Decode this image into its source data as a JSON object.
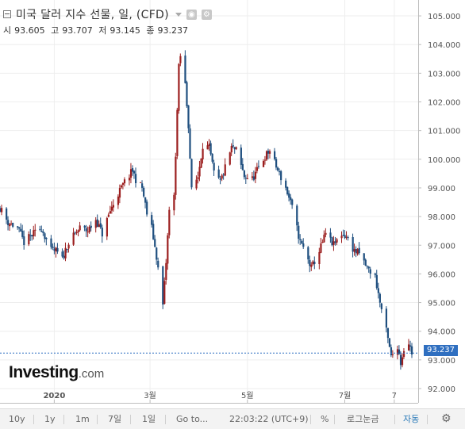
{
  "header": {
    "title": "미국 달러 지수 선물, 일, (CFD)",
    "ohlc": [
      {
        "label": "시",
        "value": "93.605"
      },
      {
        "label": "고",
        "value": "93.707"
      },
      {
        "label": "저",
        "value": "93.145"
      },
      {
        "label": "종",
        "value": "93.237"
      }
    ]
  },
  "logo": {
    "brand": "Investing",
    "domain": ".com"
  },
  "last_price_label": "93.237",
  "toolbar": {
    "items": [
      "10y",
      "1y",
      "1m",
      "7일",
      "1일",
      "Go to...",
      "22:03:22 (UTC+9)",
      "%",
      "로그눈금",
      "자동"
    ],
    "active": "자동"
  },
  "colors": {
    "up": "#9c1f1f",
    "down": "#1f4f7f",
    "price_line": "#2f6fc0",
    "grid": "#eeeeee"
  },
  "chart_data": {
    "type": "candlestick",
    "y_axis_position": "right",
    "ylim": [
      91.8,
      105.3
    ],
    "y_ticks": [
      "92.000",
      "93.000",
      "94.000",
      "95.000",
      "96.000",
      "97.000",
      "98.000",
      "99.000",
      "100.000",
      "101.000",
      "102.000",
      "103.000",
      "104.000",
      "105.000"
    ],
    "x_ticks": [
      {
        "label": "2020",
        "at": "2020-01-01"
      },
      {
        "label": "3월",
        "at": "2020-03-01"
      },
      {
        "label": "5월",
        "at": "2020-05-01"
      },
      {
        "label": "7월",
        "at": "2020-07-01"
      },
      {
        "label": "7",
        "at": "2020-08-01"
      }
    ],
    "x_range": [
      "2019-11-28",
      "2020-08-12"
    ],
    "last_price": 93.237,
    "price_path": [
      [
        "2019-11-28",
        98.3
      ],
      [
        "2019-12-03",
        97.8
      ],
      [
        "2019-12-09",
        97.6
      ],
      [
        "2019-12-13",
        97.1
      ],
      [
        "2019-12-19",
        97.4
      ],
      [
        "2019-12-24",
        97.6
      ],
      [
        "2019-12-30",
        96.8
      ],
      [
        "2020-01-02",
        96.8
      ],
      [
        "2020-01-06",
        96.5
      ],
      [
        "2020-01-09",
        97.0
      ],
      [
        "2020-01-13",
        97.3
      ],
      [
        "2020-01-17",
        97.6
      ],
      [
        "2020-01-22",
        97.5
      ],
      [
        "2020-01-27",
        97.9
      ],
      [
        "2020-01-31",
        97.4
      ],
      [
        "2020-02-05",
        98.2
      ],
      [
        "2020-02-10",
        98.8
      ],
      [
        "2020-02-14",
        99.2
      ],
      [
        "2020-02-19",
        99.6
      ],
      [
        "2020-02-21",
        99.3
      ],
      [
        "2020-02-25",
        99.0
      ],
      [
        "2020-02-28",
        98.1
      ],
      [
        "2020-03-02",
        97.6
      ],
      [
        "2020-03-05",
        96.6
      ],
      [
        "2020-03-09",
        94.9
      ],
      [
        "2020-03-11",
        96.4
      ],
      [
        "2020-03-13",
        98.2
      ],
      [
        "2020-03-16",
        98.7
      ],
      [
        "2020-03-18",
        101.7
      ],
      [
        "2020-03-19",
        103.2
      ],
      [
        "2020-03-20",
        103.6
      ],
      [
        "2020-03-23",
        102.6
      ],
      [
        "2020-03-25",
        101.2
      ],
      [
        "2020-03-27",
        98.9
      ],
      [
        "2020-03-31",
        99.4
      ],
      [
        "2020-04-03",
        100.5
      ],
      [
        "2020-04-07",
        100.4
      ],
      [
        "2020-04-10",
        99.5
      ],
      [
        "2020-04-14",
        99.2
      ],
      [
        "2020-04-17",
        99.7
      ],
      [
        "2020-04-21",
        100.4
      ],
      [
        "2020-04-24",
        100.3
      ],
      [
        "2020-04-29",
        99.4
      ],
      [
        "2020-05-04",
        99.3
      ],
      [
        "2020-05-08",
        99.7
      ],
      [
        "2020-05-12",
        100.1
      ],
      [
        "2020-05-15",
        100.3
      ],
      [
        "2020-05-20",
        99.6
      ],
      [
        "2020-05-25",
        99.0
      ],
      [
        "2020-05-29",
        98.3
      ],
      [
        "2020-06-03",
        97.1
      ],
      [
        "2020-06-05",
        96.9
      ],
      [
        "2020-06-10",
        96.2
      ],
      [
        "2020-06-15",
        96.8
      ],
      [
        "2020-06-19",
        97.4
      ],
      [
        "2020-06-24",
        97.0
      ],
      [
        "2020-06-29",
        97.4
      ],
      [
        "2020-07-02",
        97.3
      ],
      [
        "2020-07-07",
        96.8
      ],
      [
        "2020-07-10",
        96.7
      ],
      [
        "2020-07-15",
        96.2
      ],
      [
        "2020-07-20",
        95.9
      ],
      [
        "2020-07-23",
        95.0
      ],
      [
        "2020-07-27",
        94.0
      ],
      [
        "2020-07-30",
        93.1
      ],
      [
        "2020-08-03",
        93.5
      ],
      [
        "2020-08-05",
        92.9
      ],
      [
        "2020-08-07",
        93.4
      ],
      [
        "2020-08-10",
        93.6
      ],
      [
        "2020-08-12",
        93.24
      ]
    ]
  }
}
